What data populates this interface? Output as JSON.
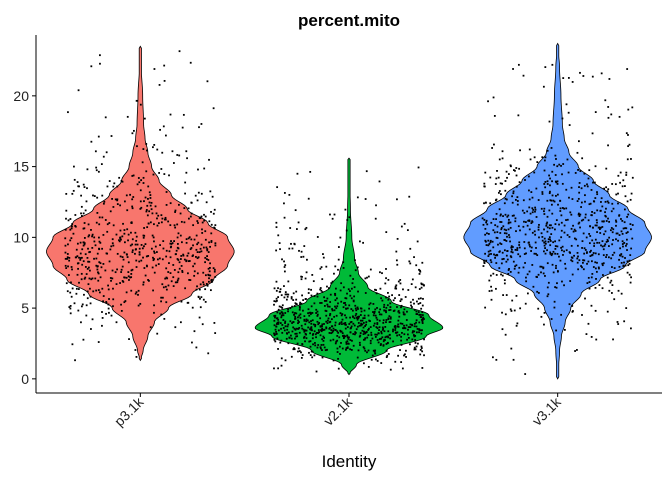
{
  "chart_data": {
    "type": "violin",
    "title": "percent.mito",
    "xlabel": "Identity",
    "ylabel": "",
    "ylim": [
      -1,
      24.3
    ],
    "yticks": [
      0,
      5,
      10,
      15,
      20
    ],
    "categories": [
      "p3.1k",
      "v2.1k",
      "v3.1k"
    ],
    "jitter_points": true,
    "grid": false,
    "legend": "none",
    "series": [
      {
        "name": "p3.1k",
        "color": "#F8766D",
        "min": 1.3,
        "max": 23.5,
        "median": 9.2,
        "points_approx": 700,
        "density_profile": [
          [
            1.3,
            0.0
          ],
          [
            2.0,
            0.03
          ],
          [
            3.0,
            0.08
          ],
          [
            4.0,
            0.15
          ],
          [
            5.0,
            0.3
          ],
          [
            6.0,
            0.55
          ],
          [
            7.0,
            0.78
          ],
          [
            8.0,
            0.93
          ],
          [
            9.0,
            1.0
          ],
          [
            10.0,
            0.93
          ],
          [
            11.0,
            0.72
          ],
          [
            12.0,
            0.5
          ],
          [
            13.0,
            0.33
          ],
          [
            14.0,
            0.2
          ],
          [
            15.0,
            0.12
          ],
          [
            16.0,
            0.08
          ],
          [
            17.0,
            0.05
          ],
          [
            18.0,
            0.035
          ],
          [
            20.0,
            0.025
          ],
          [
            22.0,
            0.01
          ],
          [
            23.5,
            0.0
          ]
        ]
      },
      {
        "name": "v2.1k",
        "color": "#00BA38",
        "min": 0.3,
        "max": 15.6,
        "median": 3.7,
        "points_approx": 900,
        "density_profile": [
          [
            0.3,
            0.0
          ],
          [
            1.0,
            0.08
          ],
          [
            2.0,
            0.4
          ],
          [
            3.0,
            0.82
          ],
          [
            3.6,
            1.0
          ],
          [
            4.5,
            0.85
          ],
          [
            5.5,
            0.45
          ],
          [
            6.5,
            0.2
          ],
          [
            7.5,
            0.1
          ],
          [
            8.5,
            0.06
          ],
          [
            10.0,
            0.03
          ],
          [
            12.0,
            0.015
          ],
          [
            14.0,
            0.008
          ],
          [
            15.6,
            0.0
          ]
        ]
      },
      {
        "name": "v3.1k",
        "color": "#619CFF",
        "min": 0.0,
        "max": 23.7,
        "median": 10.0,
        "points_approx": 800,
        "density_profile": [
          [
            0.0,
            0.0
          ],
          [
            2.0,
            0.02
          ],
          [
            3.0,
            0.04
          ],
          [
            4.0,
            0.08
          ],
          [
            5.0,
            0.14
          ],
          [
            6.0,
            0.25
          ],
          [
            7.0,
            0.45
          ],
          [
            8.0,
            0.72
          ],
          [
            9.0,
            0.93
          ],
          [
            10.0,
            1.0
          ],
          [
            11.0,
            0.93
          ],
          [
            12.0,
            0.75
          ],
          [
            13.0,
            0.55
          ],
          [
            14.0,
            0.38
          ],
          [
            15.0,
            0.22
          ],
          [
            16.0,
            0.12
          ],
          [
            17.0,
            0.07
          ],
          [
            18.0,
            0.05
          ],
          [
            20.0,
            0.035
          ],
          [
            22.0,
            0.02
          ],
          [
            23.7,
            0.0
          ]
        ]
      }
    ]
  }
}
